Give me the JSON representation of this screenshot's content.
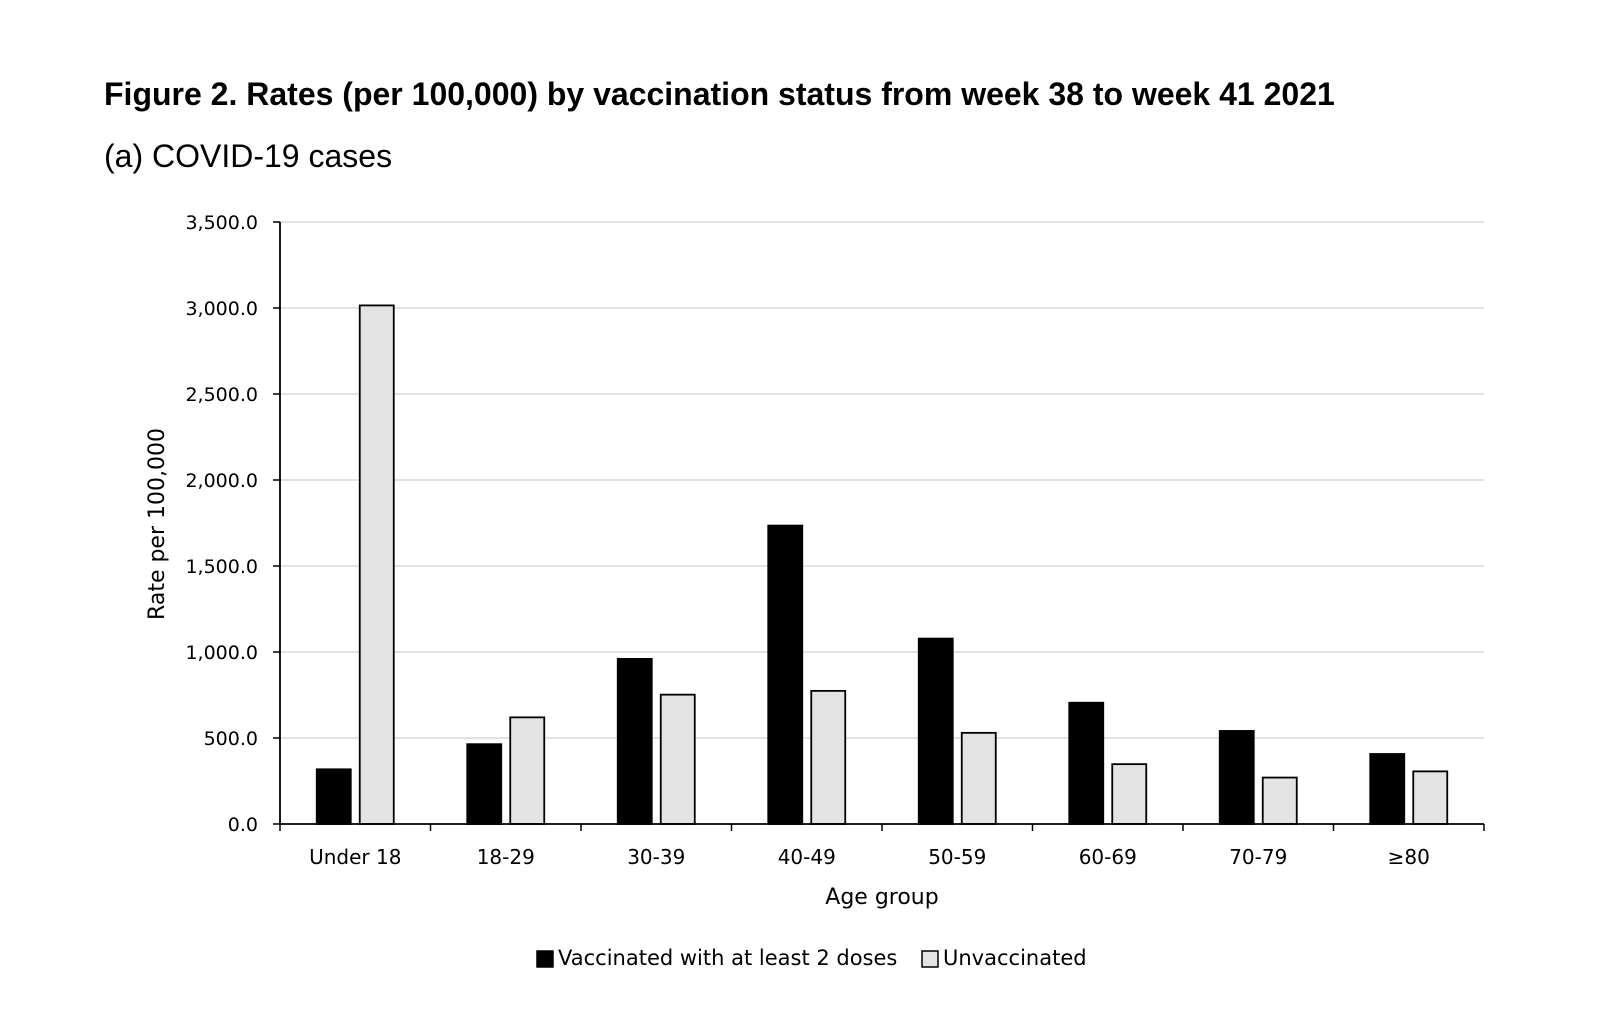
{
  "figure": {
    "title": "Figure 2. Rates (per 100,000) by vaccination status from week 38 to week 41 2021",
    "subtitle": "(a) COVID-19 cases"
  },
  "chart_data": {
    "type": "bar",
    "title": "Figure 2. Rates (per 100,000) by vaccination status from week 38 to week 41 2021",
    "subtitle": "(a) COVID-19 cases",
    "xlabel": "Age group",
    "ylabel": "Rate per 100,000",
    "categories": [
      "Under 18",
      "18-29",
      "30-39",
      "40-49",
      "50-59",
      "60-69",
      "70-79",
      "≥80"
    ],
    "series": [
      {
        "name": "Vaccinated with at least 2 doses",
        "color": "#000000",
        "values": [
          318.0,
          464.0,
          960.0,
          1735.0,
          1078.0,
          705.0,
          541.0,
          407.0
        ]
      },
      {
        "name": "Unvaccinated",
        "color": "#e4e3e4",
        "values": [
          3015.0,
          620.0,
          752.0,
          774.0,
          530.0,
          348.0,
          270.0,
          306.0
        ]
      }
    ],
    "ylim": [
      0,
      3500
    ],
    "yticks": [
      "0.0",
      "500.0",
      "1,000.0",
      "1,500.0",
      "2,000.0",
      "2,500.0",
      "3,000.0",
      "3,500.0"
    ],
    "ytick_values": [
      0,
      500,
      1000,
      1500,
      2000,
      2500,
      3000,
      3500
    ],
    "grid": true,
    "legend_position": "bottom"
  }
}
